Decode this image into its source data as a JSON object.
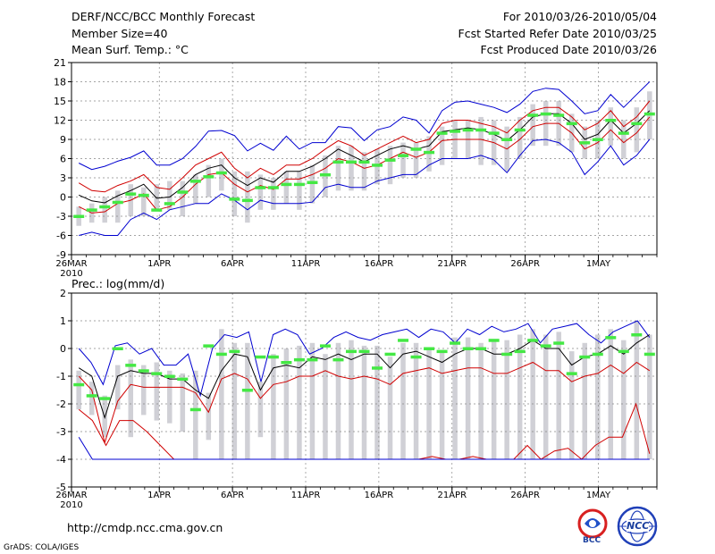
{
  "header": {
    "title": "DERF/NCC/BCC Monthly Forecast",
    "member_size": "Member Size=40",
    "variable": "Mean Surf. Temp.: °C",
    "period": "For 2010/03/26-2010/05/04",
    "started": "Fcst Started Refer Date 2010/03/25",
    "produced": "Fcst Produced Date 2010/03/26"
  },
  "footer": {
    "url": "http://cmdp.ncc.cma.gov.cn",
    "credit": "GrADS: COLA/IGES",
    "logo_bcc": "BCC",
    "logo_ncc": "NCC"
  },
  "colors": {
    "ensemble": "#000000",
    "spread_inner": "#d00000",
    "spread_outer": "#0000d0",
    "box": "#d0d0d6",
    "marker": "#44e844"
  },
  "x_labels": [
    "26MAR",
    "1APR",
    "6APR",
    "11APR",
    "16APR",
    "21APR",
    "26APR",
    "1MAY"
  ],
  "x_year": "2010",
  "chart_data": [
    {
      "type": "line",
      "title": "Mean Surf. Temp.: °C",
      "ylim": [
        -9,
        21
      ],
      "yticks": [
        -9,
        -6,
        -3,
        0,
        3,
        6,
        9,
        12,
        15,
        18,
        21
      ],
      "days": 40,
      "series": [
        {
          "name": "max",
          "values": [
            5.3,
            4.3,
            4.8,
            5.6,
            6.2,
            7.2,
            5.0,
            5.0,
            6.0,
            7.9,
            10.3,
            10.4,
            9.6,
            7.2,
            8.4,
            7.3,
            9.5,
            7.5,
            8.5,
            8.5,
            11.0,
            10.8,
            8.8,
            10.5,
            11.0,
            12.5,
            12.0,
            10.0,
            13.5,
            14.8,
            15.0,
            14.5,
            14.0,
            13.2,
            14.5,
            16.5,
            17.0,
            16.8,
            15.0,
            13.0,
            13.5,
            16.0,
            14.0,
            16.0,
            18.0
          ]
        },
        {
          "name": "upper",
          "values": [
            2.2,
            1.0,
            0.8,
            1.8,
            2.5,
            3.5,
            1.5,
            1.2,
            3.0,
            5.0,
            6.0,
            7.0,
            4.5,
            3.0,
            4.5,
            3.5,
            5.0,
            5.0,
            6.0,
            7.5,
            8.8,
            8.0,
            6.5,
            7.5,
            8.5,
            9.5,
            8.5,
            9.0,
            11.5,
            12.0,
            12.0,
            11.5,
            11.0,
            10.0,
            12.0,
            13.5,
            14.0,
            14.0,
            12.5,
            10.5,
            11.5,
            13.5,
            11.0,
            12.5,
            15.0
          ]
        },
        {
          "name": "mean",
          "values": [
            0.3,
            -0.6,
            -0.9,
            0.2,
            1.0,
            2.0,
            -0.2,
            0.0,
            1.5,
            3.5,
            4.5,
            5.0,
            3.0,
            1.8,
            3.0,
            2.3,
            4.0,
            4.0,
            4.8,
            6.0,
            7.5,
            6.5,
            5.5,
            6.5,
            7.5,
            8.0,
            7.5,
            8.0,
            10.2,
            10.5,
            10.8,
            10.5,
            9.8,
            8.8,
            10.5,
            12.5,
            13.0,
            13.0,
            11.5,
            9.0,
            9.8,
            12.0,
            10.0,
            11.5,
            13.5
          ]
        },
        {
          "name": "lower",
          "values": [
            -1.5,
            -2.5,
            -2.3,
            -1.0,
            -0.5,
            0.5,
            -2.0,
            -1.5,
            0.0,
            2.0,
            3.5,
            3.8,
            2.0,
            0.8,
            1.8,
            1.2,
            2.8,
            2.8,
            3.5,
            4.5,
            6.0,
            5.5,
            4.5,
            5.0,
            6.0,
            7.0,
            6.2,
            7.0,
            8.8,
            9.0,
            9.0,
            9.0,
            8.5,
            7.5,
            9.0,
            11.0,
            11.5,
            11.5,
            10.0,
            7.5,
            8.5,
            10.5,
            8.5,
            10.0,
            12.5
          ]
        },
        {
          "name": "min",
          "values": [
            -6.0,
            -5.5,
            -6.0,
            -6.0,
            -3.5,
            -2.5,
            -3.5,
            -2.0,
            -1.5,
            -1.0,
            -1.0,
            0.5,
            -0.5,
            -2.0,
            -0.5,
            -1.0,
            -1.0,
            -1.0,
            -0.8,
            1.5,
            2.0,
            1.5,
            1.5,
            2.5,
            3.0,
            3.5,
            3.5,
            5.0,
            6.0,
            6.0,
            6.0,
            6.5,
            5.8,
            3.8,
            6.5,
            8.8,
            9.0,
            8.5,
            7.0,
            3.5,
            5.5,
            8.0,
            5.0,
            6.5,
            9.0
          ]
        }
      ],
      "boxes": [
        [
          -4.5,
          -1.5
        ],
        [
          -4,
          -1
        ],
        [
          -4,
          0
        ],
        [
          -4,
          1
        ],
        [
          -3,
          2
        ],
        [
          -3,
          1.5
        ],
        [
          -2,
          2
        ],
        [
          -2,
          2.5
        ],
        [
          -3,
          2.5
        ],
        [
          -1,
          3.5
        ],
        [
          0,
          5
        ],
        [
          1,
          6
        ],
        [
          -3,
          4
        ],
        [
          -4,
          4
        ],
        [
          -2,
          3.5
        ],
        [
          -2,
          3
        ],
        [
          -1,
          4
        ],
        [
          -2,
          4
        ],
        [
          -1,
          5
        ],
        [
          0,
          6.5
        ],
        [
          1,
          8
        ],
        [
          1,
          8
        ],
        [
          1,
          7
        ],
        [
          2,
          7.5
        ],
        [
          2,
          8
        ],
        [
          3,
          8.5
        ],
        [
          3,
          8.5
        ],
        [
          4,
          9.5
        ],
        [
          5,
          11
        ],
        [
          6,
          12
        ],
        [
          6,
          12
        ],
        [
          5,
          12.5
        ],
        [
          5,
          12
        ],
        [
          4,
          11
        ],
        [
          6,
          12.5
        ],
        [
          8,
          14.5
        ],
        [
          8,
          15
        ],
        [
          8,
          15
        ],
        [
          7,
          13
        ],
        [
          6,
          11
        ],
        [
          6,
          12
        ],
        [
          8,
          14
        ],
        [
          6,
          12
        ],
        [
          7,
          14
        ],
        [
          9,
          16.5
        ]
      ],
      "markers": [
        -3,
        -2,
        -1.5,
        -0.8,
        0.5,
        0.3,
        -2,
        -1,
        0.8,
        2.5,
        3.2,
        3.8,
        -0.3,
        -0.5,
        1.5,
        1.5,
        2,
        2,
        2.3,
        3.5,
        5.5,
        5.5,
        5.5,
        5,
        5.8,
        6.5,
        7.5,
        7,
        10,
        10.3,
        10.5,
        10.5,
        10,
        9,
        10.5,
        12.8,
        13,
        12.8,
        11.5,
        8.5,
        9,
        12,
        10,
        11.5,
        13
      ]
    },
    {
      "type": "line",
      "title": "Prec.: log(mm/d)",
      "ylim": [
        -5,
        2
      ],
      "yticks": [
        -5,
        -4,
        -3,
        -2,
        -1,
        0,
        1,
        2
      ],
      "days": 40,
      "series": [
        {
          "name": "max",
          "values": [
            0.0,
            -0.5,
            -1.3,
            0.1,
            0.2,
            -0.2,
            0.0,
            -0.6,
            -0.6,
            -0.2,
            -1.7,
            0.0,
            0.5,
            0.4,
            0.6,
            -1.2,
            0.5,
            0.7,
            0.5,
            -0.2,
            0.0,
            0.4,
            0.6,
            0.4,
            0.3,
            0.5,
            0.6,
            0.7,
            0.4,
            0.7,
            0.6,
            0.2,
            0.7,
            0.5,
            0.8,
            0.6,
            0.7,
            0.9,
            0.2,
            0.7,
            0.8,
            0.9,
            0.5,
            0.2,
            0.6,
            0.8,
            1.0,
            0.4
          ]
        },
        {
          "name": "mean",
          "values": [
            -0.7,
            -1.0,
            -2.5,
            -1.0,
            -0.8,
            -0.9,
            -0.9,
            -1.1,
            -1.1,
            -1.5,
            -1.8,
            -0.8,
            -0.2,
            -0.3,
            -1.5,
            -0.7,
            -0.6,
            -0.7,
            -0.3,
            -0.4,
            -0.2,
            -0.4,
            -0.2,
            -0.2,
            -0.7,
            -0.2,
            -0.1,
            -0.3,
            -0.5,
            -0.2,
            0.0,
            0.0,
            -0.2,
            -0.2,
            0.0,
            0.3,
            0.0,
            0.0,
            -0.6,
            -0.3,
            -0.2,
            0.1,
            -0.2,
            0.2,
            0.5
          ]
        },
        {
          "name": "lower",
          "values": [
            -1.0,
            -1.5,
            -3.4,
            -1.9,
            -1.3,
            -1.4,
            -1.4,
            -1.4,
            -1.4,
            -1.6,
            -2.3,
            -1.1,
            -0.9,
            -1.1,
            -1.8,
            -1.3,
            -1.2,
            -1.0,
            -1.0,
            -0.8,
            -1.0,
            -1.1,
            -1.0,
            -1.1,
            -1.3,
            -0.9,
            -0.8,
            -0.7,
            -0.9,
            -0.8,
            -0.7,
            -0.7,
            -0.9,
            -0.9,
            -0.7,
            -0.5,
            -0.8,
            -0.8,
            -1.2,
            -1.0,
            -0.9,
            -0.6,
            -0.9,
            -0.5,
            -0.8
          ]
        },
        {
          "name": "low_extreme",
          "values": [
            -2.2,
            -2.6,
            -3.5,
            -2.6,
            -2.6,
            -3.0,
            -3.5,
            -4.0,
            -4.0,
            -4.0,
            -4.0,
            -4.0,
            -4.0,
            -4.0,
            -4.0,
            -4.0,
            -4.0,
            -4.0,
            -4.0,
            -4.0,
            -4.0,
            -4.0,
            -4.0,
            -4.0,
            -4.0,
            -4.0,
            -3.9,
            -4.0,
            -4.0,
            -3.9,
            -4.0,
            -4.0,
            -4.0,
            -3.5,
            -4.0,
            -3.7,
            -3.6,
            -4.0,
            -3.5,
            -3.2,
            -3.2,
            -2.0,
            -3.8
          ]
        },
        {
          "name": "min",
          "values": [
            -3.2,
            -4.0,
            -4.0,
            -4.0,
            -4.0,
            -4.0,
            -4.0,
            -4.0,
            -4.0,
            -4.0,
            -4.0,
            -4.0,
            -4.0,
            -4.0,
            -4.0,
            -4.0,
            -4.0,
            -4.0,
            -4.0,
            -4.0,
            -4.0,
            -4.0,
            -4.0,
            -4.0,
            -4.0,
            -4.0,
            -4.0,
            -4.0,
            -4.0,
            -4.0,
            -4.0,
            -4.0,
            -4.0,
            -4.0,
            -4.0,
            -4.0,
            -4.0,
            -4.0,
            -4.0,
            -4.0,
            -4.0,
            -4.0,
            -4.0
          ]
        }
      ],
      "boxes": [
        [
          -2.2,
          -0.8
        ],
        [
          -2.4,
          -1.2
        ],
        [
          -3.2,
          -1.7
        ],
        [
          -2.2,
          -0.6
        ],
        [
          -3.2,
          -0.4
        ],
        [
          -2.4,
          -0.6
        ],
        [
          -2.6,
          -0.5
        ],
        [
          -2.7,
          -0.8
        ],
        [
          -3.0,
          -0.9
        ],
        [
          -4.0,
          -0.8
        ],
        [
          -3.3,
          -1.6
        ],
        [
          -4.0,
          0.7
        ],
        [
          -4.0,
          0.2
        ],
        [
          -4.0,
          0.2
        ],
        [
          -3.2,
          -1.2
        ],
        [
          -4.0,
          -0.2
        ],
        [
          -4.0,
          0.0
        ],
        [
          -4.0,
          0.1
        ],
        [
          -4.0,
          0.2
        ],
        [
          -4.0,
          -0.2
        ],
        [
          -4.0,
          0.2
        ],
        [
          -4.0,
          0.3
        ],
        [
          -4.0,
          0.1
        ],
        [
          -4.0,
          0.1
        ],
        [
          -4.0,
          -0.3
        ],
        [
          -4.0,
          0.2
        ],
        [
          -4.0,
          0.2
        ],
        [
          -4.0,
          0.0
        ],
        [
          -4.0,
          -0.1
        ],
        [
          -4.0,
          0.4
        ],
        [
          -4.0,
          0.4
        ],
        [
          -4.0,
          0.2
        ],
        [
          -4.0,
          0.3
        ],
        [
          -4.0,
          0.3
        ],
        [
          -4.0,
          0.5
        ],
        [
          -4.0,
          0.7
        ],
        [
          -4.0,
          0.5
        ],
        [
          -4.0,
          0.6
        ],
        [
          -4.0,
          -0.1
        ],
        [
          -4.0,
          0.2
        ],
        [
          -4.0,
          0.5
        ],
        [
          -4.0,
          0.7
        ],
        [
          -4.0,
          0.3
        ],
        [
          -4.0,
          1.0
        ],
        [
          -4.0,
          0.5
        ]
      ],
      "markers": [
        -1.3,
        -1.7,
        -1.8,
        0.0,
        -0.6,
        -0.8,
        -0.9,
        -1.0,
        -1.1,
        -2.2,
        0.1,
        -0.2,
        -0.1,
        -1.5,
        -0.3,
        -0.3,
        -0.5,
        -0.4,
        -0.4,
        0.1,
        -0.4,
        -0.1,
        -0.1,
        -0.7,
        -0.2,
        0.3,
        -0.3,
        0.0,
        -0.1,
        0.2,
        0.0,
        0.0,
        0.3,
        -0.2,
        -0.1,
        0.3,
        0.1,
        0.2,
        -0.9,
        -0.3,
        -0.2,
        0.4,
        -0.1,
        0.5,
        -0.2
      ]
    }
  ]
}
